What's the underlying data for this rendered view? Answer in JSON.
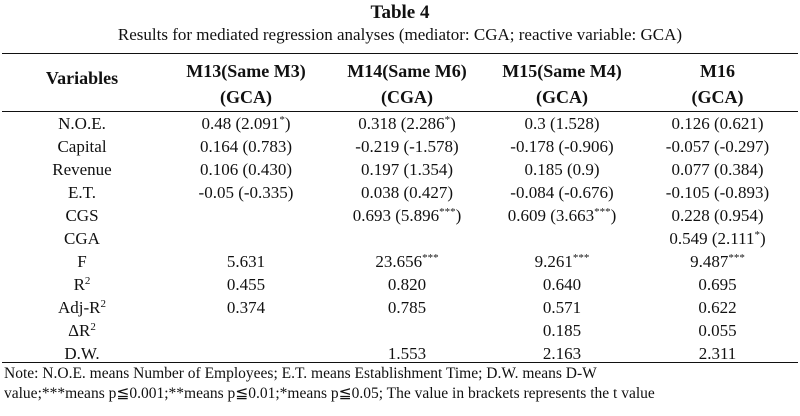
{
  "table": {
    "title": "Table 4",
    "subtitle": "Results for mediated regression analyses (mediator: CGA; reactive variable: GCA)",
    "var_header": "Variables",
    "columns": [
      {
        "line1": "M13(Same M3)",
        "line2": "(GCA)"
      },
      {
        "line1": "M14(Same M6)",
        "line2": "(CGA)"
      },
      {
        "line1": "M15(Same M4)",
        "line2": "(GCA)"
      },
      {
        "line1": "M16",
        "line2": "(GCA)"
      }
    ],
    "rows": [
      {
        "label": "N.O.E.",
        "label_sup": "",
        "cells": [
          {
            "text": "0.48 (2.091",
            "sup": "*",
            "tail": ")"
          },
          {
            "text": "0.318 (2.286",
            "sup": "*",
            "tail": ")"
          },
          {
            "text": "0.3 (1.528)",
            "sup": "",
            "tail": ""
          },
          {
            "text": "0.126 (0.621)",
            "sup": "",
            "tail": ""
          }
        ]
      },
      {
        "label": "Capital",
        "label_sup": "",
        "cells": [
          {
            "text": "0.164 (0.783)",
            "sup": "",
            "tail": ""
          },
          {
            "text": "-0.219 (-1.578)",
            "sup": "",
            "tail": ""
          },
          {
            "text": "-0.178 (-0.906)",
            "sup": "",
            "tail": ""
          },
          {
            "text": "-0.057 (-0.297)",
            "sup": "",
            "tail": ""
          }
        ]
      },
      {
        "label": "Revenue",
        "label_sup": "",
        "cells": [
          {
            "text": "0.106 (0.430)",
            "sup": "",
            "tail": ""
          },
          {
            "text": "0.197 (1.354)",
            "sup": "",
            "tail": ""
          },
          {
            "text": "0.185 (0.9)",
            "sup": "",
            "tail": ""
          },
          {
            "text": "0.077 (0.384)",
            "sup": "",
            "tail": ""
          }
        ]
      },
      {
        "label": "E.T.",
        "label_sup": "",
        "cells": [
          {
            "text": "-0.05 (-0.335)",
            "sup": "",
            "tail": ""
          },
          {
            "text": "0.038 (0.427)",
            "sup": "",
            "tail": ""
          },
          {
            "text": "-0.084 (-0.676)",
            "sup": "",
            "tail": ""
          },
          {
            "text": "-0.105 (-0.893)",
            "sup": "",
            "tail": ""
          }
        ]
      },
      {
        "label": "CGS",
        "label_sup": "",
        "cells": [
          {
            "text": "",
            "sup": "",
            "tail": ""
          },
          {
            "text": "0.693 (5.896",
            "sup": "***",
            "tail": ")"
          },
          {
            "text": "0.609 (3.663",
            "sup": "***",
            "tail": ")"
          },
          {
            "text": "0.228 (0.954)",
            "sup": "",
            "tail": ""
          }
        ]
      },
      {
        "label": "CGA",
        "label_sup": "",
        "cells": [
          {
            "text": "",
            "sup": "",
            "tail": ""
          },
          {
            "text": "",
            "sup": "",
            "tail": ""
          },
          {
            "text": "",
            "sup": "",
            "tail": ""
          },
          {
            "text": "0.549 (2.111",
            "sup": "*",
            "tail": ")"
          }
        ]
      },
      {
        "label": "F",
        "label_sup": "",
        "cells": [
          {
            "text": "5.631",
            "sup": "",
            "tail": ""
          },
          {
            "text": "23.656",
            "sup": "***",
            "tail": ""
          },
          {
            "text": "9.261",
            "sup": "***",
            "tail": ""
          },
          {
            "text": "9.487",
            "sup": "***",
            "tail": ""
          }
        ]
      },
      {
        "label": "R",
        "label_sup": "2",
        "cells": [
          {
            "text": "0.455",
            "sup": "",
            "tail": ""
          },
          {
            "text": "0.820",
            "sup": "",
            "tail": ""
          },
          {
            "text": "0.640",
            "sup": "",
            "tail": ""
          },
          {
            "text": "0.695",
            "sup": "",
            "tail": ""
          }
        ]
      },
      {
        "label": "Adj-R",
        "label_sup": "2",
        "cells": [
          {
            "text": "0.374",
            "sup": "",
            "tail": ""
          },
          {
            "text": "0.785",
            "sup": "",
            "tail": ""
          },
          {
            "text": "0.571",
            "sup": "",
            "tail": ""
          },
          {
            "text": "0.622",
            "sup": "",
            "tail": ""
          }
        ]
      },
      {
        "label": "ΔR",
        "label_sup": "2",
        "cells": [
          {
            "text": "",
            "sup": "",
            "tail": ""
          },
          {
            "text": "",
            "sup": "",
            "tail": ""
          },
          {
            "text": "0.185",
            "sup": "",
            "tail": ""
          },
          {
            "text": "0.055",
            "sup": "",
            "tail": ""
          }
        ]
      },
      {
        "label": "D.W.",
        "label_sup": "",
        "cells": [
          {
            "text": "",
            "sup": "",
            "tail": ""
          },
          {
            "text": "1.553",
            "sup": "",
            "tail": ""
          },
          {
            "text": "2.163",
            "sup": "",
            "tail": ""
          },
          {
            "text": "2.311",
            "sup": "",
            "tail": ""
          }
        ]
      }
    ],
    "note_line1": "Note: N.O.E. means Number of Employees; E.T. means Establishment Time; D.W. means D-W",
    "note_line2": "value;***means p≦0.001;**means p≦0.01;*means p≦0.05; The value in brackets represents the t value"
  }
}
